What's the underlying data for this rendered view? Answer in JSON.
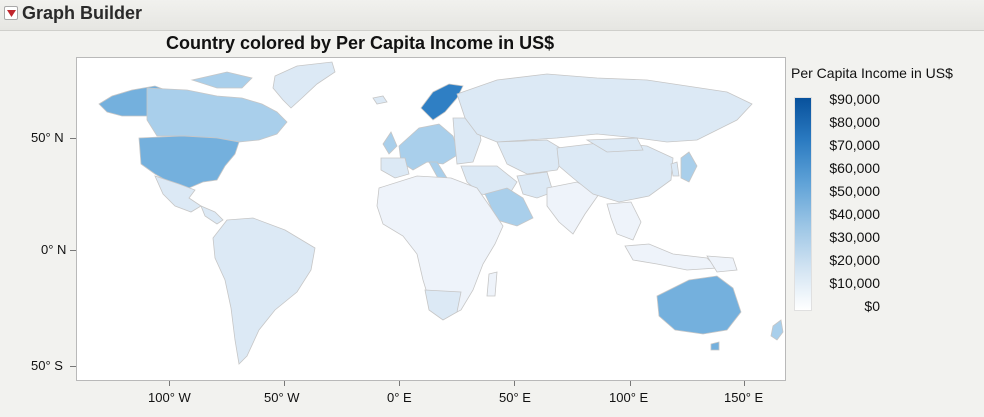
{
  "panel": {
    "title": "Graph Builder"
  },
  "chart": {
    "title": "Country colored by Per Capita Income in US$"
  },
  "y_axis": {
    "labels": [
      "50° N",
      "0° N",
      "50° S"
    ]
  },
  "x_axis": {
    "labels": [
      "100° W",
      "50° W",
      "0° E",
      "50° E",
      "100° E",
      "150° E"
    ]
  },
  "legend": {
    "title": "Per Capita Income in US$",
    "labels": [
      "$90,000",
      "$80,000",
      "$70,000",
      "$60,000",
      "$50,000",
      "$40,000",
      "$30,000",
      "$20,000",
      "$10,000",
      "$0"
    ]
  },
  "colors": {
    "very_low": "#eef3fa",
    "low": "#dce9f5",
    "medium": "#a9cfeb",
    "high": "#74b0dd",
    "very_high": "#2f7fc4",
    "border": "#c6c6c6"
  },
  "chart_data": {
    "type": "heatmap",
    "title": "Country colored by Per Capita Income in US$",
    "legend_title": "Per Capita Income in US$",
    "value_range": [
      0,
      90000
    ],
    "xlabel": "",
    "ylabel": "",
    "regions": [
      {
        "name": "United States",
        "level": "high"
      },
      {
        "name": "Canada",
        "level": "medium"
      },
      {
        "name": "Alaska",
        "level": "high"
      },
      {
        "name": "Greenland",
        "level": "low"
      },
      {
        "name": "Norway",
        "level": "very_high"
      },
      {
        "name": "Western Europe",
        "level": "medium"
      },
      {
        "name": "Russia",
        "level": "low"
      },
      {
        "name": "Australia",
        "level": "high"
      },
      {
        "name": "Saudi Arabia / Gulf",
        "level": "medium"
      },
      {
        "name": "Japan",
        "level": "medium"
      },
      {
        "name": "South America",
        "level": "low"
      },
      {
        "name": "Africa",
        "level": "very_low"
      }
    ]
  }
}
